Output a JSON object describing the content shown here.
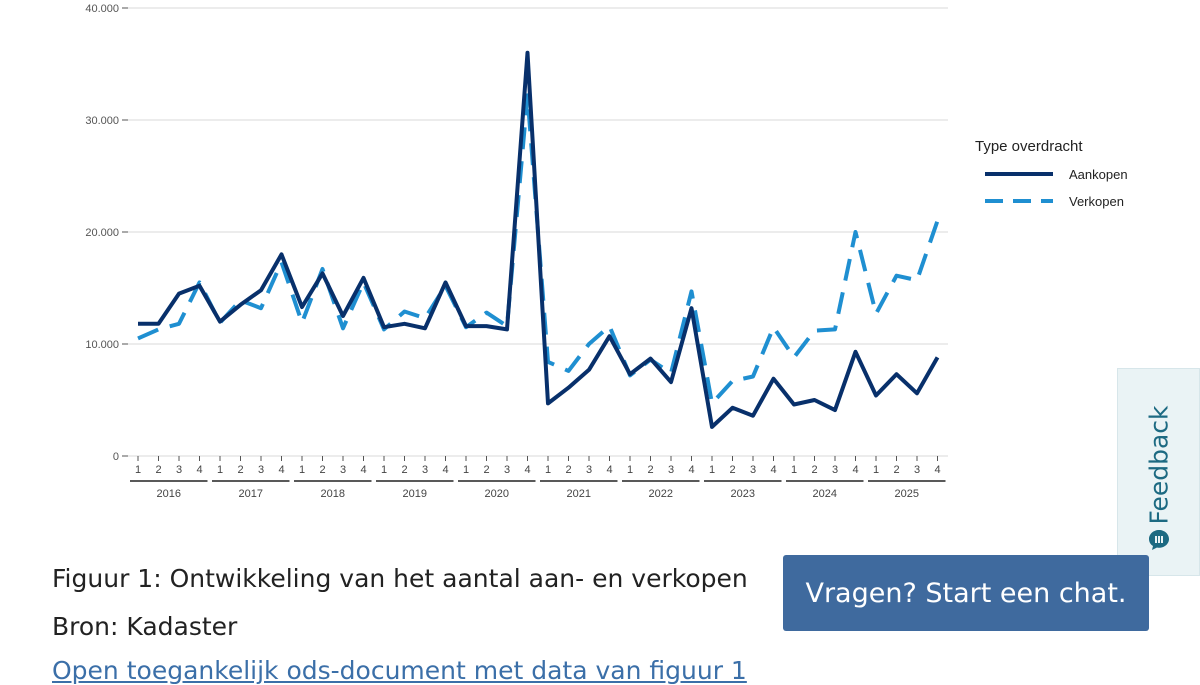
{
  "chart_data": {
    "type": "line",
    "title": "",
    "xlabel": "",
    "ylabel": "",
    "ylim": [
      0,
      40000
    ],
    "y_ticks": [
      0,
      10000,
      20000,
      30000,
      40000
    ],
    "y_tick_labels": [
      "0",
      "10.000",
      "20.000",
      "30.000",
      "40.000"
    ],
    "grid": true,
    "quarters": [
      "1",
      "2",
      "3",
      "4"
    ],
    "years": [
      "2016",
      "2017",
      "2018",
      "2019",
      "2020",
      "2021",
      "2022",
      "2023",
      "2024",
      "2025"
    ],
    "legend": {
      "title": "Type overdracht",
      "position": "right"
    },
    "series": [
      {
        "name": "Aankopen",
        "color": "#08306b",
        "style": "solid",
        "values": [
          11800,
          11800,
          14500,
          15200,
          12000,
          13500,
          14800,
          18000,
          13300,
          16300,
          12500,
          15900,
          11500,
          11800,
          11400,
          15500,
          11600,
          11600,
          11300,
          36000,
          4700,
          6100,
          7700,
          10700,
          7300,
          8700,
          6600,
          13200,
          2600,
          4300,
          3600,
          6900,
          4600,
          5000,
          4100,
          9300,
          5400,
          7300,
          5600,
          8800
        ]
      },
      {
        "name": "Verkopen",
        "color": "#1f8fd1",
        "style": "dashed",
        "values": [
          10500,
          11300,
          11800,
          15500,
          11900,
          13900,
          13200,
          17300,
          11900,
          16700,
          11400,
          15500,
          11300,
          12900,
          12300,
          15200,
          11500,
          12800,
          11600,
          32200,
          8400,
          7600,
          10000,
          11600,
          7200,
          8600,
          7400,
          14700,
          4700,
          6700,
          7100,
          11500,
          8800,
          11200,
          11300,
          20000,
          12700,
          16100,
          15700,
          21000
        ]
      }
    ]
  },
  "caption": {
    "figure": "Figuur 1: Ontwikkeling van het aantal aan- en verkopen",
    "source": "Bron: Kadaster",
    "link": "Open toegankelijk ods-document met data van figuur 1"
  },
  "chat_button": {
    "label": "Vragen? Start een chat."
  },
  "feedback_tab": {
    "label": "Feedback",
    "icon": "chat-bubble-icon"
  }
}
